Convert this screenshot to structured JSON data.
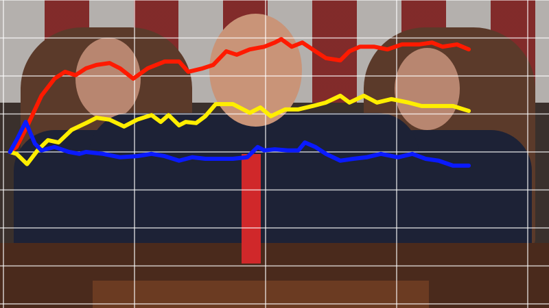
{
  "chart_data": {
    "type": "line",
    "title": "",
    "xlabel": "",
    "ylabel": "",
    "grid": true,
    "legend": "none",
    "xlim": [
      0,
      4.1
    ],
    "ylim": [
      -4,
      4
    ],
    "series": [
      {
        "color": "#ff1a00",
        "points": [
          [
            0.05,
            0
          ],
          [
            0.1,
            0.13
          ],
          [
            0.18,
            0.67
          ],
          [
            0.29,
            1.48
          ],
          [
            0.39,
            1.93
          ],
          [
            0.47,
            2.11
          ],
          [
            0.55,
            2.02
          ],
          [
            0.63,
            2.2
          ],
          [
            0.71,
            2.29
          ],
          [
            0.81,
            2.34
          ],
          [
            0.89,
            2.2
          ],
          [
            0.99,
            1.93
          ],
          [
            1.1,
            2.2
          ],
          [
            1.23,
            2.38
          ],
          [
            1.34,
            2.38
          ],
          [
            1.41,
            2.11
          ],
          [
            1.52,
            2.2
          ],
          [
            1.6,
            2.29
          ],
          [
            1.7,
            2.65
          ],
          [
            1.78,
            2.56
          ],
          [
            1.88,
            2.7
          ],
          [
            1.99,
            2.77
          ],
          [
            2.07,
            2.88
          ],
          [
            2.12,
            2.97
          ],
          [
            2.2,
            2.77
          ],
          [
            2.28,
            2.88
          ],
          [
            2.38,
            2.65
          ],
          [
            2.46,
            2.47
          ],
          [
            2.57,
            2.41
          ],
          [
            2.64,
            2.65
          ],
          [
            2.72,
            2.77
          ],
          [
            2.83,
            2.77
          ],
          [
            2.93,
            2.7
          ],
          [
            3.04,
            2.83
          ],
          [
            3.17,
            2.83
          ],
          [
            3.27,
            2.88
          ],
          [
            3.35,
            2.77
          ],
          [
            3.46,
            2.83
          ],
          [
            3.55,
            2.7
          ]
        ]
      },
      {
        "color": "#ffee00",
        "points": [
          [
            0.05,
            0
          ],
          [
            0.1,
            -0.05
          ],
          [
            0.18,
            -0.32
          ],
          [
            0.26,
            0.04
          ],
          [
            0.34,
            0.31
          ],
          [
            0.42,
            0.25
          ],
          [
            0.52,
            0.58
          ],
          [
            0.63,
            0.76
          ],
          [
            0.71,
            0.9
          ],
          [
            0.81,
            0.85
          ],
          [
            0.92,
            0.67
          ],
          [
            1.02,
            0.85
          ],
          [
            1.13,
            0.97
          ],
          [
            1.2,
            0.79
          ],
          [
            1.26,
            0.97
          ],
          [
            1.34,
            0.7
          ],
          [
            1.39,
            0.79
          ],
          [
            1.47,
            0.76
          ],
          [
            1.54,
            0.94
          ],
          [
            1.62,
            1.26
          ],
          [
            1.75,
            1.26
          ],
          [
            1.88,
            1.03
          ],
          [
            1.96,
            1.17
          ],
          [
            2.04,
            0.94
          ],
          [
            2.15,
            1.12
          ],
          [
            2.25,
            1.12
          ],
          [
            2.36,
            1.21
          ],
          [
            2.46,
            1.3
          ],
          [
            2.57,
            1.48
          ],
          [
            2.64,
            1.3
          ],
          [
            2.75,
            1.48
          ],
          [
            2.85,
            1.3
          ],
          [
            2.96,
            1.39
          ],
          [
            3.09,
            1.3
          ],
          [
            3.19,
            1.21
          ],
          [
            3.32,
            1.21
          ],
          [
            3.43,
            1.21
          ],
          [
            3.55,
            1.08
          ]
        ]
      },
      {
        "color": "#0a1aff",
        "points": [
          [
            0.05,
            0
          ],
          [
            0.1,
            0.31
          ],
          [
            0.17,
            0.79
          ],
          [
            0.24,
            0.22
          ],
          [
            0.29,
            0.04
          ],
          [
            0.39,
            0.13
          ],
          [
            0.5,
            0
          ],
          [
            0.58,
            -0.05
          ],
          [
            0.63,
            0
          ],
          [
            0.76,
            -0.05
          ],
          [
            0.89,
            -0.14
          ],
          [
            1.02,
            -0.11
          ],
          [
            1.13,
            -0.05
          ],
          [
            1.23,
            -0.11
          ],
          [
            1.34,
            -0.23
          ],
          [
            1.44,
            -0.14
          ],
          [
            1.54,
            -0.18
          ],
          [
            1.75,
            -0.18
          ],
          [
            1.86,
            -0.14
          ],
          [
            1.94,
            0.13
          ],
          [
            1.99,
            0.04
          ],
          [
            2.07,
            0.07
          ],
          [
            2.17,
            0.04
          ],
          [
            2.25,
            0.04
          ],
          [
            2.3,
            0.25
          ],
          [
            2.38,
            0.13
          ],
          [
            2.46,
            -0.05
          ],
          [
            2.57,
            -0.23
          ],
          [
            2.67,
            -0.18
          ],
          [
            2.77,
            -0.14
          ],
          [
            2.88,
            -0.05
          ],
          [
            3.01,
            -0.14
          ],
          [
            3.12,
            -0.05
          ],
          [
            3.22,
            -0.18
          ],
          [
            3.32,
            -0.23
          ],
          [
            3.43,
            -0.36
          ],
          [
            3.55,
            -0.36
          ]
        ]
      }
    ]
  }
}
